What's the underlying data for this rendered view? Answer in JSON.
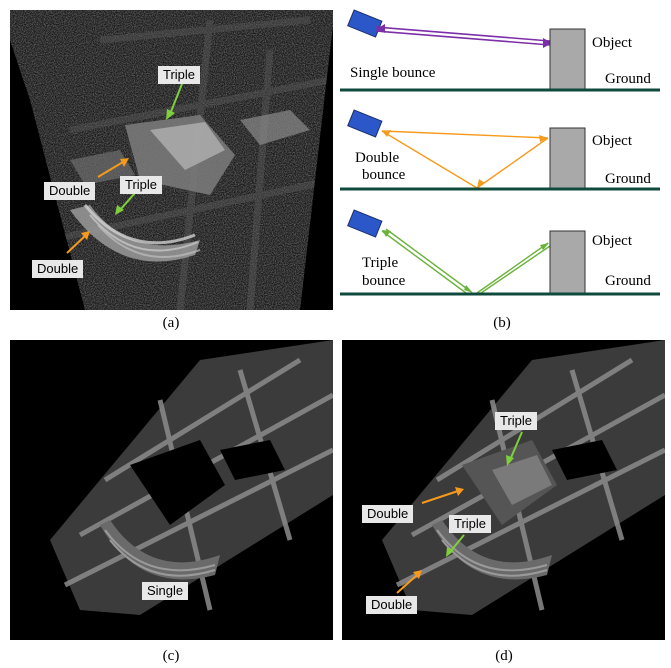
{
  "panels": {
    "a": {
      "caption": "(a)",
      "labels": {
        "triple_top": "Triple",
        "double_mid": "Double",
        "triple_mid": "Triple",
        "double_low": "Double"
      }
    },
    "b": {
      "caption": "(b)",
      "rows": [
        {
          "bounce_label": "Single bounce",
          "object_label": "Object",
          "ground_label": "Ground",
          "ray_color": "#7b2fa8"
        },
        {
          "bounce_label_line1": "Double",
          "bounce_label_line2": "bounce",
          "object_label": "Object",
          "ground_label": "Ground",
          "ray_color": "#f59a1c"
        },
        {
          "bounce_label_line1": "Triple",
          "bounce_label_line2": "bounce",
          "object_label": "Object",
          "ground_label": "Ground",
          "ray_color": "#6ab23c"
        }
      ]
    },
    "c": {
      "caption": "(c)",
      "labels": {
        "single": "Single"
      }
    },
    "d": {
      "caption": "(d)",
      "labels": {
        "triple_top": "Triple",
        "double_mid": "Double",
        "triple_mid": "Triple",
        "double_low": "Double"
      }
    }
  },
  "colors": {
    "double_arrow": "#f59a1c",
    "triple_arrow": "#7fcf3c",
    "ground": "#0f4a3c",
    "sensor": "#2c57c8",
    "object": "#a9a9a9"
  }
}
